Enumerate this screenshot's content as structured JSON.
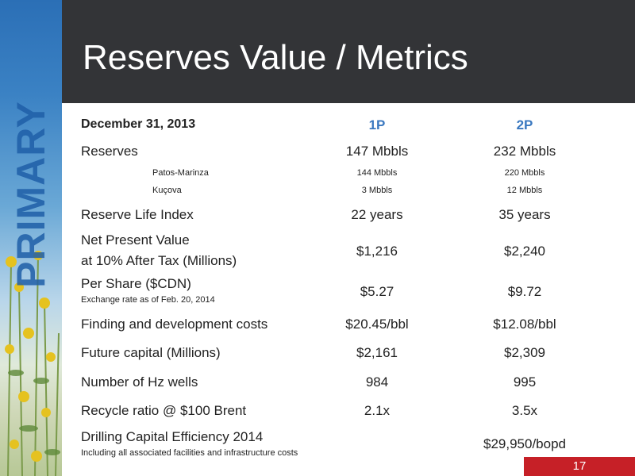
{
  "sidebar": {
    "section_word": "PRIMARY"
  },
  "header": {
    "title": "Reserves Value / Metrics"
  },
  "table": {
    "date_header": "December 31, 2013",
    "col1": "1P",
    "col2": "2P",
    "rows": [
      {
        "label": "Reserves",
        "c1": "147 Mbbls",
        "c2": "232 Mbbls"
      },
      {
        "label": "Patos-Marinza",
        "c1": "144 Mbbls",
        "c2": "220 Mbbls"
      },
      {
        "label": "Kuçova",
        "c1": "3 Mbbls",
        "c2": "12 Mbbls"
      },
      {
        "label": "Reserve Life Index",
        "c1": "22 years",
        "c2": "35 years"
      },
      {
        "label": "Net Present Value",
        "label2": "at 10% After Tax (Millions)",
        "c1": "$1,216",
        "c2": "$2,240"
      },
      {
        "label": "Per Share ($CDN)",
        "label2": "Exchange rate as of Feb. 20, 2014",
        "c1": "$5.27",
        "c2": "$9.72"
      },
      {
        "label": "Finding and development costs",
        "c1": "$20.45/bbl",
        "c2": "$12.08/bbl"
      },
      {
        "label": "Future capital (Millions)",
        "c1": "$2,161",
        "c2": "$2,309"
      },
      {
        "label": "Number of Hz wells",
        "c1": "984",
        "c2": "995"
      },
      {
        "label": "Recycle ratio @  $100 Brent",
        "c1": "2.1x",
        "c2": "3.5x"
      },
      {
        "label": "Drilling Capital Efficiency 2014",
        "label2": "Including all associated facilities and infrastructure costs",
        "c1": "",
        "c2": "$29,950/bopd"
      }
    ]
  },
  "footer": {
    "page_number": "17"
  }
}
